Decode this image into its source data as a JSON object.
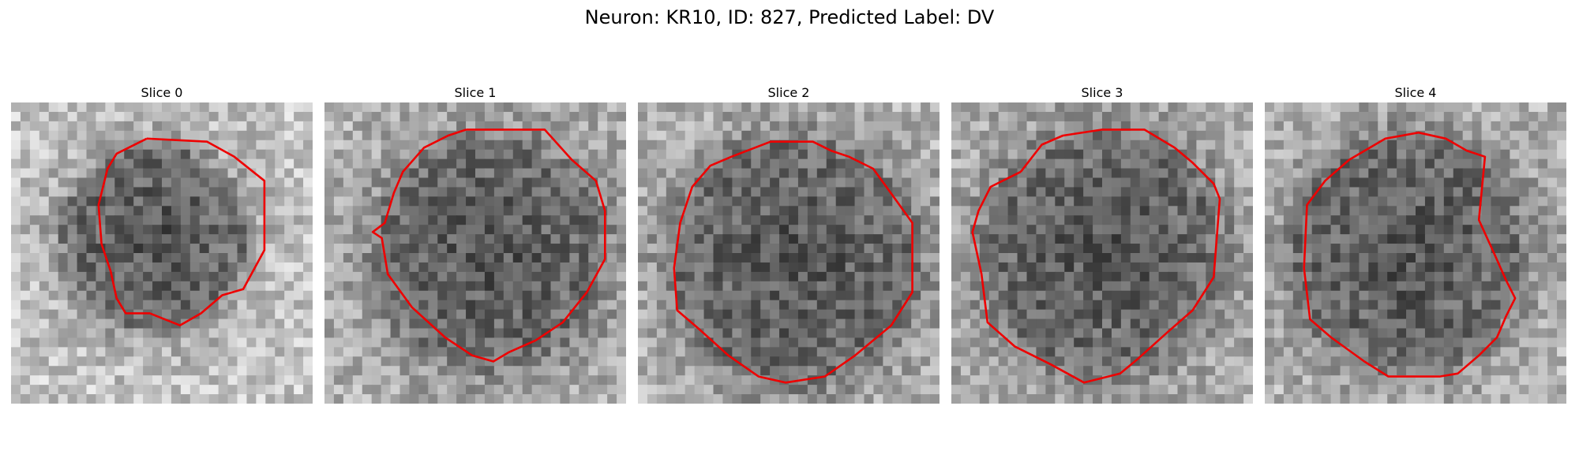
{
  "suptitle": "Neuron: KR10, ID: 827, Predicted Label: DV",
  "panels": [
    {
      "title": "Slice 0",
      "seed": 11,
      "blob": [
        0.47,
        0.45,
        0.3
      ],
      "ring": 0.78,
      "contour": [
        [
          0.45,
          0.12
        ],
        [
          0.65,
          0.13
        ],
        [
          0.74,
          0.18
        ],
        [
          0.84,
          0.26
        ],
        [
          0.84,
          0.49
        ],
        [
          0.77,
          0.62
        ],
        [
          0.7,
          0.64
        ],
        [
          0.63,
          0.7
        ],
        [
          0.56,
          0.74
        ],
        [
          0.46,
          0.7
        ],
        [
          0.38,
          0.7
        ],
        [
          0.35,
          0.65
        ],
        [
          0.33,
          0.56
        ],
        [
          0.3,
          0.47
        ],
        [
          0.29,
          0.34
        ],
        [
          0.32,
          0.22
        ],
        [
          0.35,
          0.17
        ]
      ]
    },
    {
      "title": "Slice 1",
      "seed": 23,
      "blob": [
        0.55,
        0.5,
        0.36
      ],
      "ring": 0.7,
      "contour": [
        [
          0.47,
          0.09
        ],
        [
          0.73,
          0.09
        ],
        [
          0.82,
          0.19
        ],
        [
          0.9,
          0.26
        ],
        [
          0.93,
          0.36
        ],
        [
          0.93,
          0.52
        ],
        [
          0.87,
          0.63
        ],
        [
          0.79,
          0.73
        ],
        [
          0.7,
          0.79
        ],
        [
          0.61,
          0.83
        ],
        [
          0.56,
          0.86
        ],
        [
          0.49,
          0.84
        ],
        [
          0.4,
          0.78
        ],
        [
          0.29,
          0.68
        ],
        [
          0.21,
          0.57
        ],
        [
          0.19,
          0.45
        ],
        [
          0.16,
          0.43
        ],
        [
          0.2,
          0.4
        ],
        [
          0.23,
          0.3
        ],
        [
          0.26,
          0.23
        ],
        [
          0.33,
          0.15
        ],
        [
          0.41,
          0.11
        ]
      ]
    },
    {
      "title": "Slice 2",
      "seed": 37,
      "blob": [
        0.52,
        0.53,
        0.4
      ],
      "ring": 0.72,
      "contour": [
        [
          0.31,
          0.18
        ],
        [
          0.44,
          0.13
        ],
        [
          0.58,
          0.13
        ],
        [
          0.64,
          0.16
        ],
        [
          0.7,
          0.18
        ],
        [
          0.78,
          0.22
        ],
        [
          0.86,
          0.33
        ],
        [
          0.91,
          0.4
        ],
        [
          0.91,
          0.63
        ],
        [
          0.84,
          0.74
        ],
        [
          0.72,
          0.84
        ],
        [
          0.62,
          0.91
        ],
        [
          0.49,
          0.93
        ],
        [
          0.4,
          0.91
        ],
        [
          0.3,
          0.84
        ],
        [
          0.2,
          0.75
        ],
        [
          0.13,
          0.69
        ],
        [
          0.12,
          0.55
        ],
        [
          0.14,
          0.4
        ],
        [
          0.18,
          0.28
        ],
        [
          0.24,
          0.21
        ]
      ]
    },
    {
      "title": "Slice 3",
      "seed": 53,
      "blob": [
        0.5,
        0.5,
        0.38
      ],
      "ring": 0.7,
      "contour": [
        [
          0.23,
          0.23
        ],
        [
          0.3,
          0.14
        ],
        [
          0.37,
          0.11
        ],
        [
          0.5,
          0.09
        ],
        [
          0.64,
          0.09
        ],
        [
          0.74,
          0.15
        ],
        [
          0.8,
          0.2
        ],
        [
          0.87,
          0.27
        ],
        [
          0.89,
          0.32
        ],
        [
          0.87,
          0.58
        ],
        [
          0.8,
          0.69
        ],
        [
          0.72,
          0.76
        ],
        [
          0.62,
          0.85
        ],
        [
          0.56,
          0.9
        ],
        [
          0.44,
          0.93
        ],
        [
          0.33,
          0.87
        ],
        [
          0.21,
          0.81
        ],
        [
          0.12,
          0.73
        ],
        [
          0.1,
          0.57
        ],
        [
          0.07,
          0.43
        ],
        [
          0.09,
          0.36
        ],
        [
          0.13,
          0.28
        ]
      ]
    },
    {
      "title": "Slice 4",
      "seed": 71,
      "blob": [
        0.47,
        0.5,
        0.38
      ],
      "ring": 0.72,
      "contour": [
        [
          0.28,
          0.19
        ],
        [
          0.4,
          0.12
        ],
        [
          0.51,
          0.1
        ],
        [
          0.6,
          0.12
        ],
        [
          0.67,
          0.16
        ],
        [
          0.73,
          0.18
        ],
        [
          0.71,
          0.39
        ],
        [
          0.76,
          0.5
        ],
        [
          0.8,
          0.59
        ],
        [
          0.83,
          0.65
        ],
        [
          0.8,
          0.71
        ],
        [
          0.77,
          0.78
        ],
        [
          0.71,
          0.84
        ],
        [
          0.64,
          0.9
        ],
        [
          0.58,
          0.91
        ],
        [
          0.41,
          0.91
        ],
        [
          0.33,
          0.86
        ],
        [
          0.22,
          0.78
        ],
        [
          0.15,
          0.72
        ],
        [
          0.13,
          0.55
        ],
        [
          0.14,
          0.34
        ],
        [
          0.2,
          0.26
        ]
      ]
    }
  ]
}
